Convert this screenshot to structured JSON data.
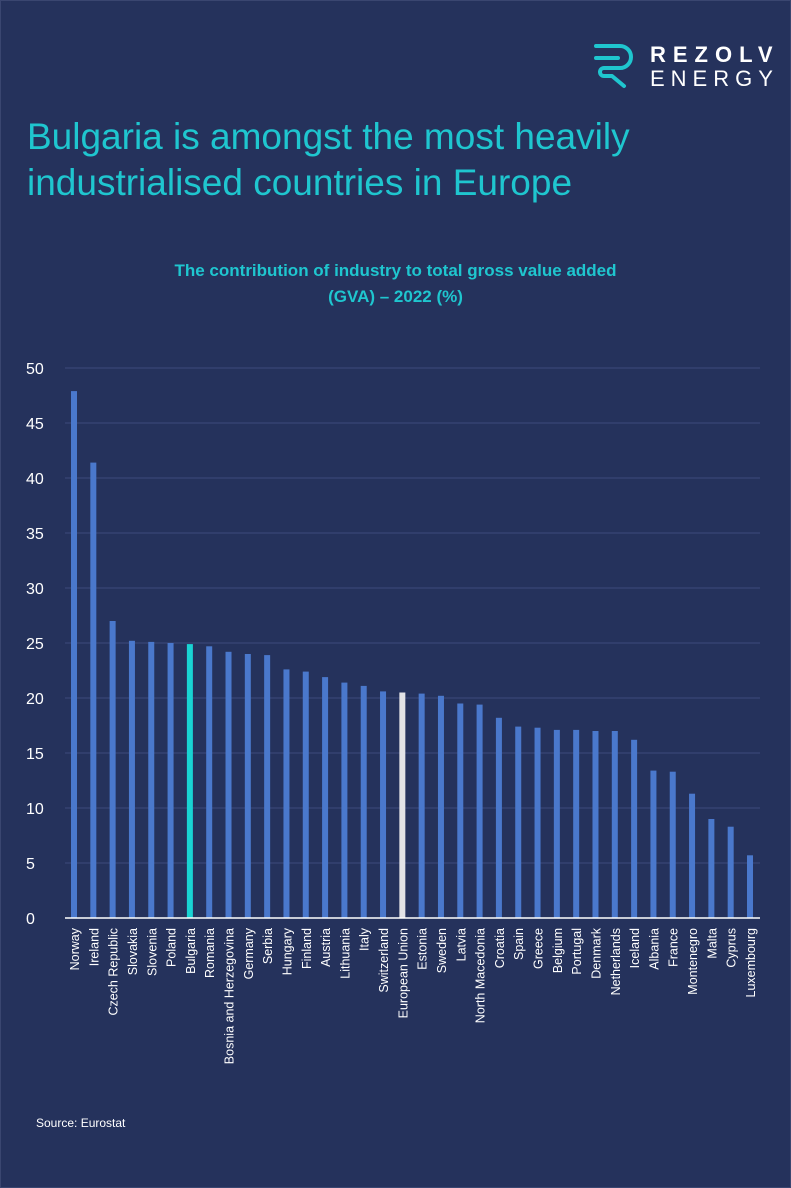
{
  "brand": {
    "name_top": "REZOLV",
    "name_bottom": "ENERGY",
    "accent": "#1fc6cf"
  },
  "title": "Bulgaria is amongst the most heavily industrialised countries in Europe",
  "subtitle_line1": "The contribution of industry to total gross value added",
  "subtitle_line2": "(GVA) – 2022 (%)",
  "source": "Source: Eurostat",
  "chart_data": {
    "type": "bar",
    "title": "The contribution of industry to total gross value added (GVA) – 2022 (%)",
    "xlabel": "",
    "ylabel": "",
    "ylim": [
      0,
      50
    ],
    "yticks": [
      0,
      5,
      10,
      15,
      20,
      25,
      30,
      35,
      40,
      45,
      50
    ],
    "grid": true,
    "categories": [
      "Norway",
      "Ireland",
      "Czech Republic",
      "Slovakia",
      "Slovenia",
      "Poland",
      "Bulgaria",
      "Romania",
      "Bosnia and Herzegovina",
      "Germany",
      "Serbia",
      "Hungary",
      "Finland",
      "Austria",
      "Lithuania",
      "Italy",
      "Switzerland",
      "European Union",
      "Estonia",
      "Sweden",
      "Latvia",
      "North Macedonia",
      "Croatia",
      "Spain",
      "Greece",
      "Belgium",
      "Portugal",
      "Denmark",
      "Netherlands",
      "Iceland",
      "Albania",
      "France",
      "Montenegro",
      "Malta",
      "Cyprus",
      "Luxembourg"
    ],
    "values": [
      47.9,
      41.4,
      27.0,
      25.2,
      25.1,
      25.0,
      24.9,
      24.7,
      24.2,
      24.0,
      23.9,
      22.6,
      22.4,
      21.9,
      21.4,
      21.1,
      20.6,
      20.5,
      20.4,
      20.2,
      19.5,
      19.4,
      18.2,
      17.4,
      17.3,
      17.1,
      17.1,
      17.0,
      17.0,
      16.2,
      13.4,
      13.3,
      11.3,
      9.0,
      8.3,
      5.7
    ],
    "colors": {
      "default": "#4a78cc",
      "Bulgaria": "#19d3d3",
      "European Union": "#e3e3e6",
      "grid": "#3d4b7c",
      "axis": "#ffffff"
    }
  }
}
